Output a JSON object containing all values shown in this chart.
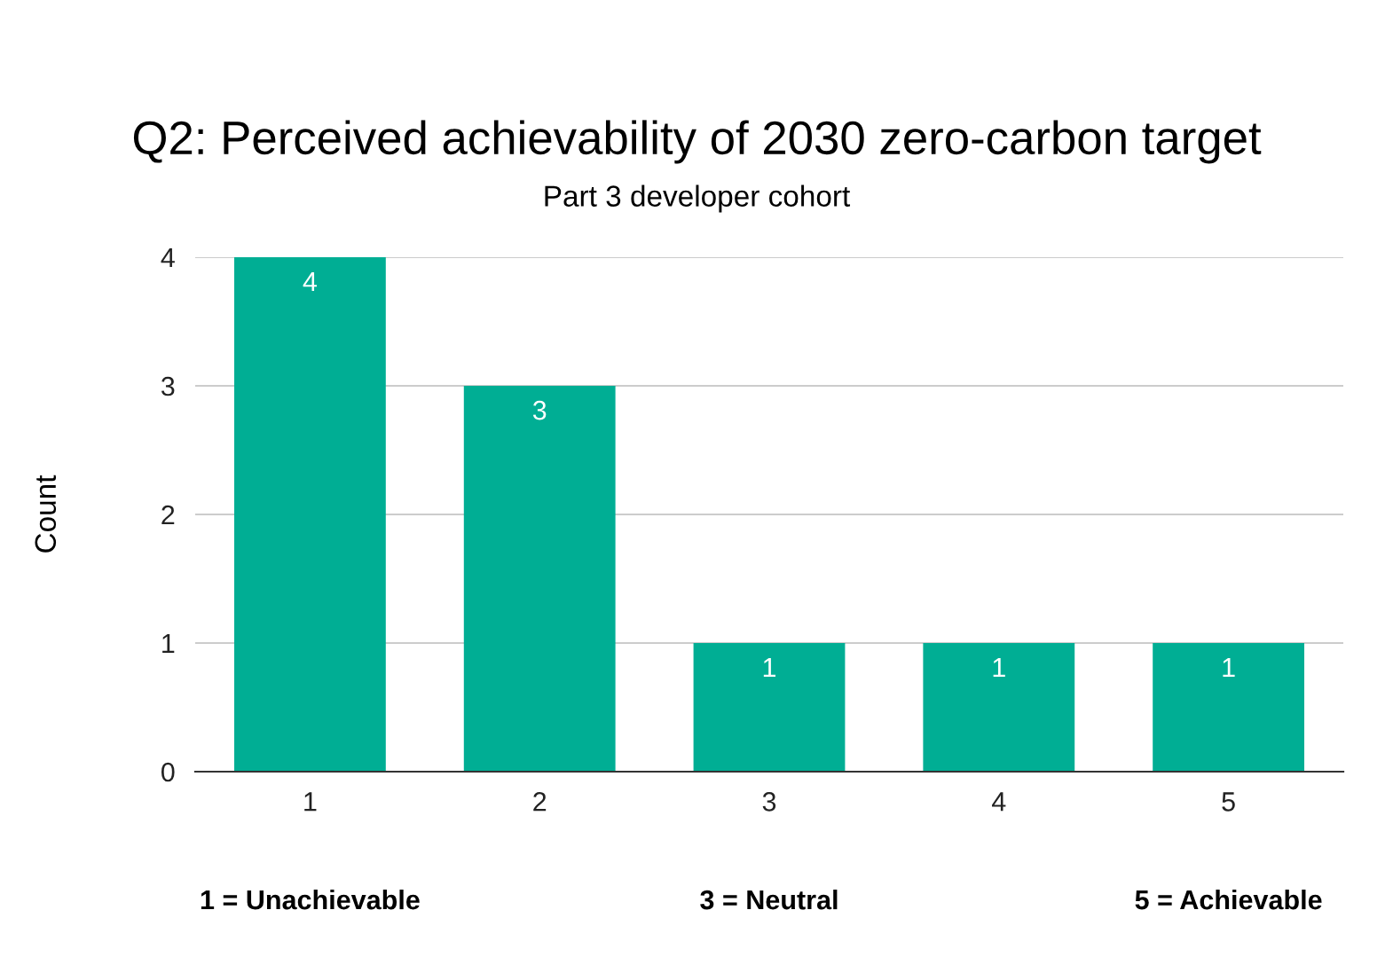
{
  "chart_data": {
    "type": "bar",
    "title": "Q2: Perceived achievability of 2030 zero-carbon target",
    "subtitle": "Part 3 developer cohort",
    "ylabel": "Count",
    "categories": [
      "1",
      "2",
      "3",
      "4",
      "5"
    ],
    "values": [
      4,
      3,
      1,
      1,
      1
    ],
    "color": "#00ae94",
    "ylim": [
      0,
      4
    ],
    "yticks": [
      0,
      1,
      2,
      3,
      4
    ],
    "grid": "y",
    "data_labels": true,
    "legend": false,
    "annotations": [
      "1 = Unachievable",
      "3 = Neutral",
      "5 = Achievable"
    ]
  }
}
